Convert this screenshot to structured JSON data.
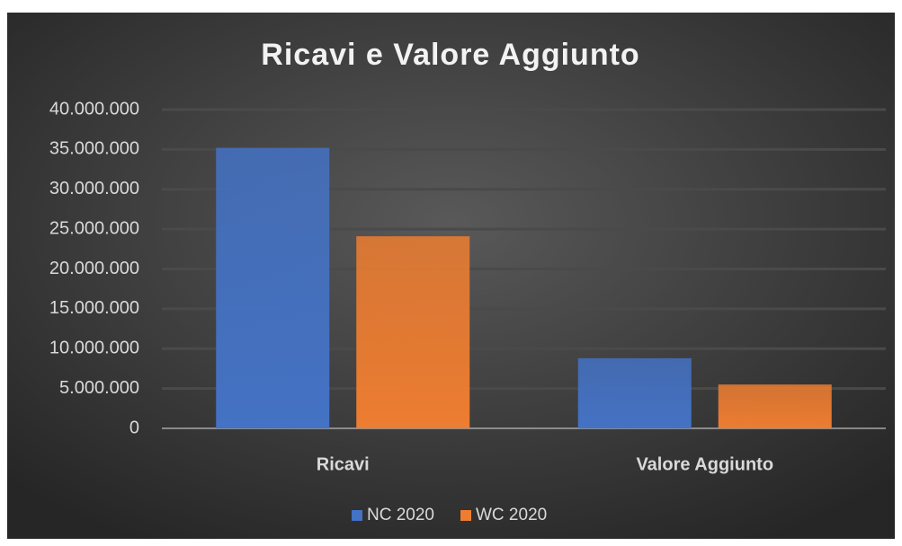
{
  "chart_data": {
    "type": "bar",
    "title": "Ricavi e Valore Aggiunto",
    "categories": [
      "Ricavi",
      "Valore Aggiunto"
    ],
    "series": [
      {
        "name": "NC 2020",
        "color": "#4472c4",
        "values": [
          35200000,
          8800000
        ]
      },
      {
        "name": "WC 2020",
        "color": "#ed7d31",
        "values": [
          24100000,
          5500000
        ]
      }
    ],
    "ylim": [
      0,
      40000000
    ],
    "yticks": [
      0,
      {
        "value": 5000000,
        "label": "5.000.000"
      },
      {
        "value": 10000000,
        "label": "10.000.000"
      },
      {
        "value": 15000000,
        "label": "15.000.000"
      },
      {
        "value": 20000000,
        "label": "20.000.000"
      },
      {
        "value": 25000000,
        "label": "25.000.000"
      },
      {
        "value": 30000000,
        "label": "30.000.000"
      },
      {
        "value": 35000000,
        "label": "35.000.000"
      },
      {
        "value": 40000000,
        "label": "40.000.000"
      }
    ],
    "grid": true,
    "legend": "bottom"
  }
}
